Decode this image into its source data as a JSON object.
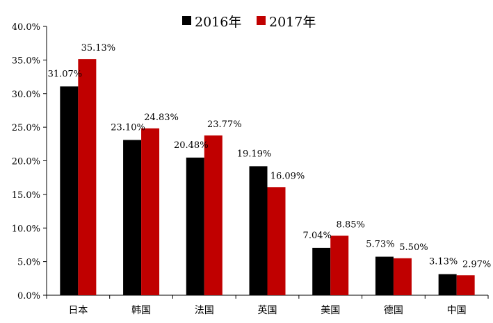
{
  "chart_data": {
    "type": "bar",
    "categories": [
      "日本",
      "韩国",
      "法国",
      "英国",
      "美国",
      "德国",
      "中国"
    ],
    "series": [
      {
        "name": "2016年",
        "color": "#000000",
        "values": [
          31.07,
          23.1,
          20.48,
          19.19,
          7.04,
          5.73,
          3.13
        ],
        "labels": [
          "31.07%",
          "23.10%",
          "20.48%",
          "19.19%",
          "7.04%",
          "5.73%",
          "3.13%"
        ]
      },
      {
        "name": "2017年",
        "color": "#c00000",
        "values": [
          35.13,
          24.83,
          23.77,
          16.09,
          8.85,
          5.5,
          2.97
        ],
        "labels": [
          "35.13%",
          "24.83%",
          "23.77%",
          "16.09%",
          "8.85%",
          "5.50%",
          "2.97%"
        ]
      }
    ],
    "y_ticks": [
      "0.0%",
      "5.0%",
      "10.0%",
      "15.0%",
      "20.0%",
      "25.0%",
      "30.0%",
      "35.0%",
      "40.0%"
    ],
    "ylim": [
      0,
      40
    ],
    "grid": false,
    "legend_position": "top-center"
  }
}
